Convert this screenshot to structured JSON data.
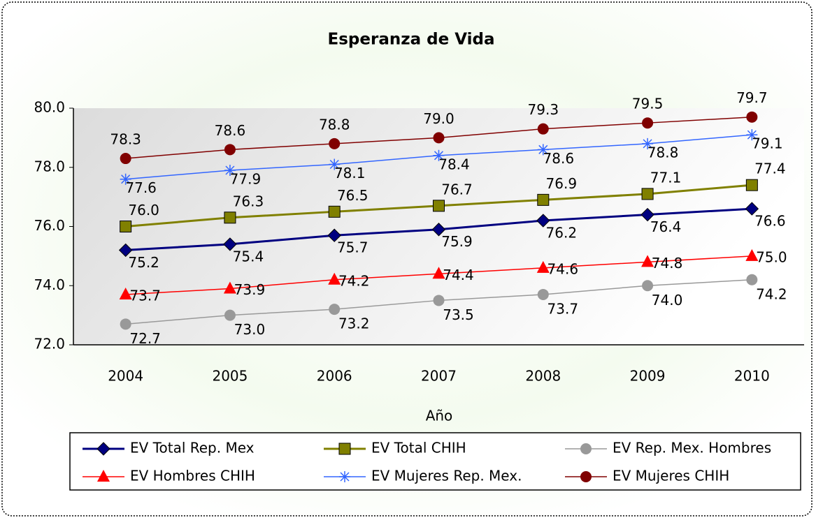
{
  "chart_data": {
    "type": "line",
    "title": "Esperanza de Vida",
    "x_label": "Año",
    "categories": [
      "2004",
      "2005",
      "2006",
      "2007",
      "2008",
      "2009",
      "2010"
    ],
    "ylim": [
      72,
      80
    ],
    "yticks": [
      {
        "value": 72,
        "label": "72.0"
      },
      {
        "value": 74,
        "label": "74.0"
      },
      {
        "value": 76,
        "label": "76.0"
      },
      {
        "value": 78,
        "label": "78.0"
      },
      {
        "value": 80,
        "label": "80.0"
      }
    ],
    "grid": false,
    "series": [
      {
        "name": "EV Total Rep. Mex",
        "color": "#000080",
        "marker": "diamond",
        "values": [
          75.2,
          75.4,
          75.7,
          75.9,
          76.2,
          76.4,
          76.6
        ],
        "value_labels": [
          "75.2",
          "75.4",
          "75.7",
          "75.9",
          "76.2",
          "76.4",
          "76.6"
        ]
      },
      {
        "name": "EV Total CHIH",
        "color": "#808000",
        "marker": "square",
        "values": [
          76.0,
          76.3,
          76.5,
          76.7,
          76.9,
          77.1,
          77.4
        ],
        "value_labels": [
          "76.0",
          "76.3",
          "76.5",
          "76.7",
          "76.9",
          "77.1",
          "77.4"
        ]
      },
      {
        "name": "EV Rep. Mex. Hombres",
        "color": "#999999",
        "marker": "circle",
        "values": [
          72.7,
          73.0,
          73.2,
          73.5,
          73.7,
          74.0,
          74.2
        ],
        "value_labels": [
          "72.7",
          "73.0",
          "73.2",
          "73.5",
          "73.7",
          "74.0",
          "74.2"
        ]
      },
      {
        "name": "EV Hombres CHIH",
        "color": "#ff0000",
        "marker": "triangle",
        "values": [
          73.7,
          73.9,
          74.2,
          74.4,
          74.6,
          74.8,
          75.0
        ],
        "value_labels": [
          "73.7",
          "73.9",
          "74.2",
          "74.4",
          "74.6",
          "74.8",
          "75.0"
        ]
      },
      {
        "name": "EV Mujeres Rep. Mex.",
        "color": "#3366ff",
        "marker": "star",
        "values": [
          77.6,
          77.9,
          78.1,
          78.4,
          78.6,
          78.8,
          79.1
        ],
        "value_labels": [
          "77.6",
          "77.9",
          "78.1",
          "78.4",
          "78.6",
          "78.8",
          "79.1"
        ]
      },
      {
        "name": "EV Mujeres CHIH",
        "color": "#800000",
        "marker": "circle",
        "values": [
          78.3,
          78.6,
          78.8,
          79.0,
          79.3,
          79.5,
          79.7
        ],
        "value_labels": [
          "78.3",
          "78.6",
          "78.8",
          "79.0",
          "79.3",
          "79.5",
          "79.7"
        ]
      }
    ],
    "legend": "bottom"
  }
}
